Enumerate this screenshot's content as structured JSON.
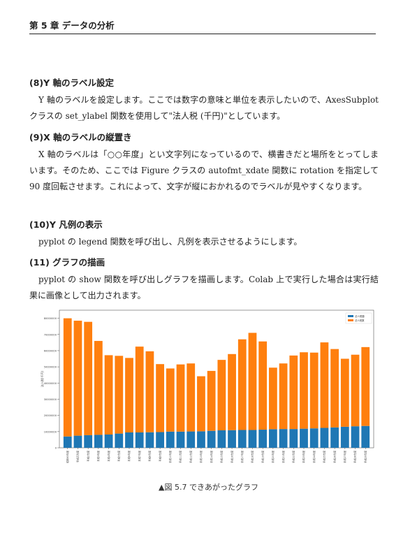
{
  "header": {
    "title": "第 5 章 データの分析"
  },
  "sections": [
    {
      "heading": "(8)Y 軸のラベル設定",
      "body": "Y 軸のラベルを設定します。ここでは数字の意味と単位を表示したいので、AxesSubplot クラスの set_ylabel 関数を使用して\"法人税 (千円)\"としています。"
    },
    {
      "heading": "(9)X 軸のラベルの縦置き",
      "body": "X 軸のラベルは「○○年度」とい文字列になっているので、横書きだと場所をとってしまいます。そのため、ここでは Figure クラスの autofmt_xdate 関数に rotation を指定して 90 度回転させます。これによって、文字が縦におかれるのでラベルが見やすくなります。"
    },
    {
      "heading": "(10)Y 凡例の表示",
      "body": "pyplot の legend 関数を呼び出し、凡例を表示させるようにします。"
    },
    {
      "heading": "(11) グラフの描画",
      "body": "pyplot の show 関数を呼び出しグラフを描画します。Colab 上で実行した場合は実行結果に画像として出力されます。"
    }
  ],
  "figure": {
    "caption": "▲図 5.7 できあがったグラフ"
  },
  "chart_data": {
    "type": "bar",
    "stacked": true,
    "categories": [
      "昭和63年度",
      "平成元年度",
      "平成2年度",
      "平成3年度",
      "平成4年度",
      "平成5年度",
      "平成6年度",
      "平成7年度",
      "平成8年度",
      "平成9年度",
      "平成10年度",
      "平成11年度",
      "平成12年度",
      "平成13年度",
      "平成14年度",
      "平成15年度",
      "平成16年度",
      "平成17年度",
      "平成18年度",
      "平成19年度",
      "平成20年度",
      "平成21年度",
      "平成22年度",
      "平成23年度",
      "平成24年度",
      "平成25年度",
      "平成26年度",
      "平成27年度",
      "平成28年度",
      "平成29年度"
    ],
    "series": [
      {
        "name": "法人税額",
        "color": "#1f77b4",
        "values": [
          7000000,
          7500000,
          7800000,
          8000000,
          8200000,
          8800000,
          9500000,
          9500000,
          9600000,
          9700000,
          10000000,
          10000000,
          10100000,
          10200000,
          10500000,
          10800000,
          10900000,
          11000000,
          11000000,
          11200000,
          11500000,
          11600000,
          11600000,
          11800000,
          12000000,
          12300000,
          12600000,
          13000000,
          13300000,
          13500000
        ]
      },
      {
        "name": "法人税数",
        "color": "#ff7f0e",
        "values": [
          73000000,
          71000000,
          70000000,
          58000000,
          49000000,
          48000000,
          46000000,
          53000000,
          50000000,
          42000000,
          39000000,
          41500000,
          42000000,
          34000000,
          37000000,
          43500000,
          47000000,
          56000000,
          60000000,
          54500000,
          38000000,
          40500000,
          45400000,
          47200000,
          46800000,
          52800000,
          48400000,
          42000000,
          44200000,
          48700000
        ]
      }
    ],
    "ylabel": "法人税(千円)",
    "ylim": [
      0,
      85000000
    ],
    "yticks": [
      0,
      10000000,
      20000000,
      30000000,
      40000000,
      50000000,
      60000000,
      70000000,
      80000000
    ],
    "legend": "top-right",
    "grid": false
  }
}
